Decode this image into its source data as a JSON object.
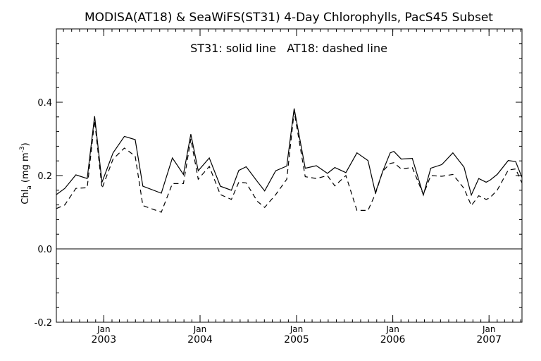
{
  "chart_data": {
    "type": "line",
    "title": "MODISA(AT18) & SeaWiFS(ST31) 4-Day Chlorophylls, PacS45 Subset",
    "annotation": "ST31: solid line   AT18: dashed line",
    "ylabel": {
      "base": "Chl",
      "sub": "a",
      "units_open": " (mg m",
      "sup": "-3",
      "units_close": ")"
    },
    "ylim": [
      -0.2,
      0.6
    ],
    "yticks": [
      {
        "value": -0.2,
        "label": "-0.2"
      },
      {
        "value": 0.0,
        "label": "0.0"
      },
      {
        "value": 0.2,
        "label": "0.2"
      },
      {
        "value": 0.4,
        "label": "0.4"
      }
    ],
    "xlim": [
      "2002-07-05",
      "2007-05-06"
    ],
    "xticks": [
      {
        "date": "2003-01-01",
        "month": "Jan",
        "year": "2003"
      },
      {
        "date": "2004-01-01",
        "month": "Jan",
        "year": "2004"
      },
      {
        "date": "2005-01-01",
        "month": "Jan",
        "year": "2005"
      },
      {
        "date": "2006-01-01",
        "month": "Jan",
        "year": "2006"
      },
      {
        "date": "2007-01-01",
        "month": "Jan",
        "year": "2007"
      }
    ],
    "reference_line": 0.0,
    "grid": false,
    "series": [
      {
        "name": "ST31",
        "style": "solid",
        "color": "#000000",
        "x": [
          "2002-07-05",
          "2002-08-06",
          "2002-09-17",
          "2002-10-30",
          "2002-11-27",
          "2002-12-25",
          "2003-02-05",
          "2003-03-20",
          "2003-04-30",
          "2003-05-29",
          "2003-08-07",
          "2003-09-18",
          "2003-10-30",
          "2003-11-27",
          "2003-12-25",
          "2004-02-05",
          "2004-03-18",
          "2004-04-29",
          "2004-05-27",
          "2004-06-24",
          "2004-08-05",
          "2004-09-02",
          "2004-10-14",
          "2004-11-25",
          "2004-12-23",
          "2005-02-03",
          "2005-03-17",
          "2005-04-28",
          "2005-05-26",
          "2005-07-07",
          "2005-08-18",
          "2005-09-29",
          "2005-10-27",
          "2005-11-24",
          "2005-12-22",
          "2006-01-05",
          "2006-02-02",
          "2006-03-16",
          "2006-04-27",
          "2006-05-25",
          "2006-07-06",
          "2006-08-17",
          "2006-09-28",
          "2006-10-26",
          "2006-11-23",
          "2006-12-21",
          "2007-01-04",
          "2007-02-01",
          "2007-03-15",
          "2007-04-12",
          "2007-05-06"
        ],
        "y": [
          0.148,
          0.165,
          0.202,
          0.192,
          0.362,
          0.182,
          0.262,
          0.307,
          0.298,
          0.171,
          0.152,
          0.248,
          0.203,
          0.313,
          0.213,
          0.248,
          0.171,
          0.16,
          0.214,
          0.224,
          0.184,
          0.158,
          0.213,
          0.226,
          0.383,
          0.22,
          0.227,
          0.206,
          0.222,
          0.208,
          0.262,
          0.241,
          0.153,
          0.212,
          0.262,
          0.266,
          0.245,
          0.247,
          0.147,
          0.22,
          0.23,
          0.262,
          0.223,
          0.147,
          0.192,
          0.182,
          0.187,
          0.203,
          0.241,
          0.238,
          0.195
        ],
        "values": [
          0.148,
          0.165,
          0.202,
          0.192,
          0.362,
          0.182,
          0.262,
          0.307,
          0.298,
          0.171,
          0.152,
          0.248,
          0.203,
          0.313,
          0.213,
          0.248,
          0.171,
          0.16,
          0.214,
          0.224,
          0.184,
          0.158,
          0.213,
          0.226,
          0.383,
          0.22,
          0.227,
          0.206,
          0.222,
          0.208,
          0.262,
          0.241,
          0.153,
          0.212,
          0.262,
          0.266,
          0.245,
          0.247,
          0.147,
          0.22,
          0.23,
          0.262,
          0.223,
          0.147,
          0.192,
          0.182,
          0.187,
          0.203,
          0.241,
          0.238,
          0.195
        ]
      },
      {
        "name": "AT18",
        "style": "dashed",
        "color": "#000000",
        "x": [
          "2002-07-05",
          "2002-08-06",
          "2002-09-17",
          "2002-10-30",
          "2002-11-27",
          "2002-12-25",
          "2003-02-05",
          "2003-03-20",
          "2003-04-30",
          "2003-05-29",
          "2003-08-07",
          "2003-09-18",
          "2003-10-30",
          "2003-11-27",
          "2003-12-25",
          "2004-02-05",
          "2004-03-18",
          "2004-04-29",
          "2004-05-27",
          "2004-06-24",
          "2004-08-05",
          "2004-09-02",
          "2004-10-14",
          "2004-11-25",
          "2004-12-23",
          "2005-02-03",
          "2005-03-17",
          "2005-04-28",
          "2005-05-26",
          "2005-07-07",
          "2005-08-18",
          "2005-09-29",
          "2005-10-27",
          "2005-11-24",
          "2005-12-22",
          "2006-01-05",
          "2006-02-02",
          "2006-03-16",
          "2006-04-27",
          "2006-05-25",
          "2006-07-06",
          "2006-08-17",
          "2006-09-28",
          "2006-10-26",
          "2006-11-23",
          "2006-12-21",
          "2007-01-04",
          "2007-02-01",
          "2007-03-15",
          "2007-04-12",
          "2007-05-06"
        ],
        "y": [
          0.11,
          0.12,
          0.165,
          0.167,
          0.35,
          0.165,
          0.245,
          0.275,
          0.253,
          0.118,
          0.1,
          0.178,
          0.178,
          0.3,
          0.19,
          0.225,
          0.148,
          0.135,
          0.182,
          0.18,
          0.13,
          0.113,
          0.148,
          0.19,
          0.375,
          0.197,
          0.192,
          0.2,
          0.172,
          0.2,
          0.105,
          0.105,
          0.15,
          0.212,
          0.233,
          0.235,
          0.218,
          0.222,
          0.148,
          0.2,
          0.198,
          0.203,
          0.165,
          0.118,
          0.145,
          0.135,
          0.139,
          0.16,
          0.215,
          0.218,
          0.18
        ],
        "values": [
          0.11,
          0.12,
          0.165,
          0.167,
          0.35,
          0.165,
          0.245,
          0.275,
          0.253,
          0.118,
          0.1,
          0.178,
          0.178,
          0.3,
          0.19,
          0.225,
          0.148,
          0.135,
          0.182,
          0.18,
          0.13,
          0.113,
          0.148,
          0.19,
          0.375,
          0.197,
          0.192,
          0.2,
          0.172,
          0.2,
          0.105,
          0.105,
          0.15,
          0.212,
          0.233,
          0.235,
          0.218,
          0.222,
          0.148,
          0.2,
          0.198,
          0.203,
          0.165,
          0.118,
          0.145,
          0.135,
          0.139,
          0.16,
          0.215,
          0.218,
          0.18
        ]
      }
    ]
  }
}
